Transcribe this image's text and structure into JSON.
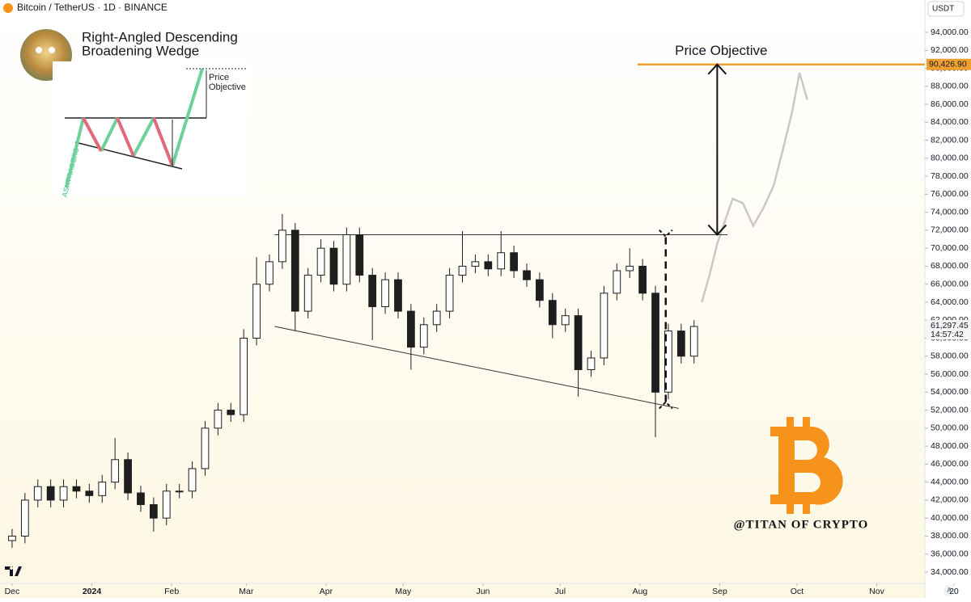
{
  "header": {
    "symbol": "Bitcoin / TetherUS · 1D · BINANCE",
    "currency": "USDT",
    "corner_button": "A"
  },
  "inset": {
    "label_lines": [
      "Price",
      "Objective"
    ],
    "brand": "ASKTRADERS"
  },
  "watermark": "@TITAN OF CRYPTO",
  "chart_data": {
    "type": "candlestick",
    "title_lines": [
      "Right-Angled Descending",
      "Broadening Wedge"
    ],
    "x": [
      0,
      5,
      10,
      15,
      20,
      25,
      30,
      35,
      40,
      45,
      50,
      55,
      60,
      65,
      70,
      75,
      80,
      85,
      90,
      95,
      100,
      105,
      110,
      115,
      120,
      125,
      130,
      135,
      140,
      145,
      150,
      155,
      160,
      165,
      170,
      175,
      180,
      185,
      190,
      195,
      200,
      205,
      210,
      215,
      220,
      225,
      230,
      235,
      240,
      245,
      250,
      255,
      260,
      265
    ],
    "open": [
      37500,
      38000,
      42000,
      43500,
      42000,
      43500,
      43000,
      42500,
      44000,
      46500,
      42800,
      41500,
      40000,
      43000,
      43000,
      45500,
      50000,
      52000,
      51500,
      60000,
      66000,
      68500,
      72000,
      63000,
      67000,
      70000,
      66000,
      71500,
      67000,
      63500,
      66500,
      63000,
      59000,
      61500,
      63000,
      67000,
      68000,
      68500,
      67700,
      69500,
      67500,
      66500,
      64200,
      61500,
      62500,
      56500,
      57800,
      65000,
      67500,
      68000,
      65000,
      54000,
      60800,
      58000
    ],
    "high": [
      38800,
      42800,
      44300,
      44300,
      44300,
      44300,
      43800,
      44800,
      48900,
      47300,
      43600,
      42300,
      43800,
      43800,
      46300,
      50800,
      52800,
      52800,
      61000,
      69000,
      69300,
      73800,
      72800,
      67800,
      71000,
      70800,
      72300,
      72300,
      67800,
      67300,
      67300,
      63800,
      62300,
      63800,
      67800,
      71900,
      69300,
      69300,
      71900,
      70300,
      68300,
      67300,
      65000,
      63300,
      63300,
      58600,
      65800,
      68300,
      70000,
      68800,
      65800,
      61600,
      61600,
      62000
    ],
    "low": [
      36700,
      37200,
      41200,
      41200,
      41200,
      42200,
      41700,
      41700,
      43200,
      42000,
      40700,
      38500,
      39200,
      42200,
      42200,
      44700,
      49200,
      50700,
      50700,
      59200,
      65200,
      67700,
      60800,
      62200,
      66200,
      65200,
      65200,
      66200,
      59800,
      62700,
      62200,
      56500,
      58200,
      60700,
      62200,
      66200,
      67200,
      66900,
      66900,
      66700,
      65700,
      63400,
      60000,
      60700,
      53500,
      55700,
      57000,
      64200,
      66700,
      64200,
      49000,
      53200,
      57200,
      57200
    ],
    "close": [
      38000,
      42000,
      43500,
      42000,
      43500,
      43000,
      42500,
      44000,
      46500,
      42800,
      41500,
      40000,
      43000,
      43000,
      45500,
      50000,
      52000,
      51500,
      60000,
      66000,
      68500,
      72000,
      63000,
      67000,
      70000,
      66000,
      71500,
      67000,
      63500,
      66500,
      63000,
      59000,
      61500,
      63000,
      67000,
      68000,
      68500,
      67700,
      69500,
      67500,
      66500,
      64200,
      61500,
      62500,
      56500,
      57800,
      65000,
      67500,
      68000,
      65000,
      54000,
      60800,
      58000,
      61300
    ],
    "up_color": "#ffffff",
    "down_color": "#1e1e1e",
    "wick_color": "#1e1e1e",
    "projection": {
      "x": [
        268,
        271,
        274,
        277,
        280,
        284,
        288,
        292,
        296,
        300,
        303,
        306,
        309
      ],
      "values": [
        64000,
        67000,
        70500,
        73000,
        75500,
        75000,
        72500,
        74500,
        77000,
        81500,
        85000,
        89500,
        86500
      ],
      "color": "#c8c8c8"
    },
    "wedge": {
      "top": {
        "x": [
          102,
          278
        ],
        "values": [
          71500,
          71500
        ]
      },
      "bottom": {
        "x": [
          102,
          259
        ],
        "values": [
          61300,
          52200
        ]
      },
      "color": "#333333"
    },
    "swing": {
      "x": 254,
      "values": [
        52900,
        71300
      ]
    },
    "objective": {
      "label": "Price Objective",
      "x": 274,
      "values": [
        71500,
        90426.9
      ]
    },
    "target": {
      "value": 90426.9,
      "label": "90,426.90",
      "start_x": 243,
      "color": "#f0a030"
    },
    "last_price": {
      "value": 61297.45,
      "label": "61,297.45",
      "countdown": "14:57:42"
    },
    "xlim": [
      -4.7,
      354.7
    ],
    "xticks": [
      {
        "value": 0,
        "label": "Dec"
      },
      {
        "value": 31,
        "label": "2024"
      },
      {
        "value": 62,
        "label": "Feb"
      },
      {
        "value": 91,
        "label": "Mar"
      },
      {
        "value": 122,
        "label": "Apr"
      },
      {
        "value": 152,
        "label": "May"
      },
      {
        "value": 183,
        "label": "Jun"
      },
      {
        "value": 213,
        "label": "Jul"
      },
      {
        "value": 244,
        "label": "Aug"
      },
      {
        "value": 275,
        "label": "Sep"
      },
      {
        "value": 305,
        "label": "Oct"
      },
      {
        "value": 336,
        "label": "Nov"
      },
      {
        "value": 366,
        "label": "20"
      }
    ],
    "ylim": [
      32740,
      97590
    ],
    "yticks": [
      {
        "value": 34000,
        "label": "34,000.00"
      },
      {
        "value": 36000,
        "label": "36,000.00"
      },
      {
        "value": 38000,
        "label": "38,000.00"
      },
      {
        "value": 40000,
        "label": "40,000.00"
      },
      {
        "value": 42000,
        "label": "42,000.00"
      },
      {
        "value": 44000,
        "label": "44,000.00"
      },
      {
        "value": 46000,
        "label": "46,000.00"
      },
      {
        "value": 48000,
        "label": "48,000.00"
      },
      {
        "value": 50000,
        "label": "50,000.00"
      },
      {
        "value": 52000,
        "label": "52,000.00"
      },
      {
        "value": 54000,
        "label": "54,000.00"
      },
      {
        "value": 56000,
        "label": "56,000.00"
      },
      {
        "value": 58000,
        "label": "58,000.00"
      },
      {
        "value": 60000,
        "label": "60,000.00"
      },
      {
        "value": 62000,
        "label": "62,000.00"
      },
      {
        "value": 64000,
        "label": "64,000.00"
      },
      {
        "value": 66000,
        "label": "66,000.00"
      },
      {
        "value": 68000,
        "label": "68,000.00"
      },
      {
        "value": 70000,
        "label": "70,000.00"
      },
      {
        "value": 72000,
        "label": "72,000.00"
      },
      {
        "value": 74000,
        "label": "74,000.00"
      },
      {
        "value": 76000,
        "label": "76,000.00"
      },
      {
        "value": 78000,
        "label": "78,000.00"
      },
      {
        "value": 80000,
        "label": "80,000.00"
      },
      {
        "value": 82000,
        "label": "82,000.00"
      },
      {
        "value": 84000,
        "label": "84,000.00"
      },
      {
        "value": 86000,
        "label": "86,000.00"
      },
      {
        "value": 88000,
        "label": "88,000.00"
      },
      {
        "value": 90000,
        "label": "90,000.00"
      },
      {
        "value": 92000,
        "label": "92,000.00"
      },
      {
        "value": 94000,
        "label": "94,000.00"
      }
    ]
  }
}
